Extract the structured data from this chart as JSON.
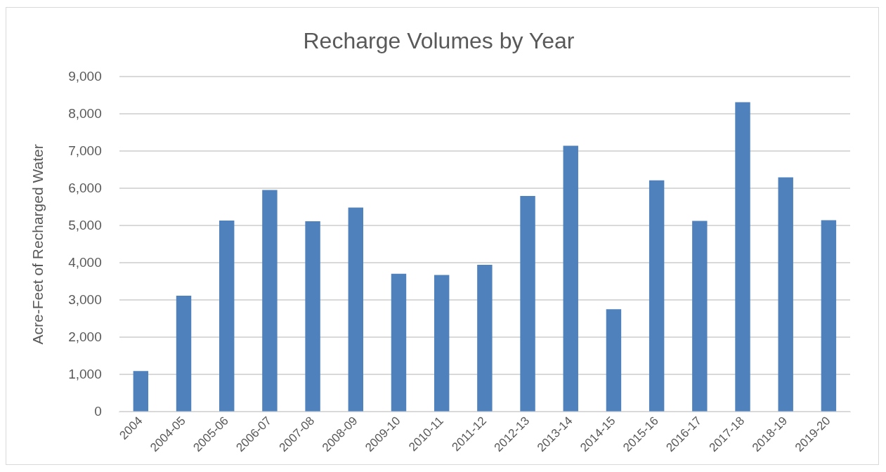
{
  "chart_data": {
    "type": "bar",
    "title": "Recharge Volumes by Year",
    "ylabel": "Acre-Feet of Recharged Water",
    "categories": [
      "2004",
      "2004-05",
      "2005-06",
      "2006-07",
      "2007-08",
      "2008-09",
      "2009-10",
      "2010-11",
      "2011-12",
      "2012-13",
      "2013-14",
      "2014-15",
      "2015-16",
      "2016-17",
      "2017-18",
      "2018-19",
      "2019-20"
    ],
    "values": [
      1100,
      3120,
      5140,
      5960,
      5120,
      5490,
      3710,
      3680,
      3950,
      5800,
      7150,
      2760,
      6220,
      5130,
      8320,
      6300,
      5150
    ],
    "color": "#4f81bd",
    "ylim": [
      0,
      9000
    ],
    "yticks": [
      {
        "value": 0,
        "label": "0"
      },
      {
        "value": 1000,
        "label": "1,000"
      },
      {
        "value": 2000,
        "label": "2,000"
      },
      {
        "value": 3000,
        "label": "3,000"
      },
      {
        "value": 4000,
        "label": "4,000"
      },
      {
        "value": 5000,
        "label": "5,000"
      },
      {
        "value": 6000,
        "label": "6,000"
      },
      {
        "value": 7000,
        "label": "7,000"
      },
      {
        "value": 8000,
        "label": "8,000"
      },
      {
        "value": 9000,
        "label": "9,000"
      }
    ],
    "grid": "y"
  }
}
